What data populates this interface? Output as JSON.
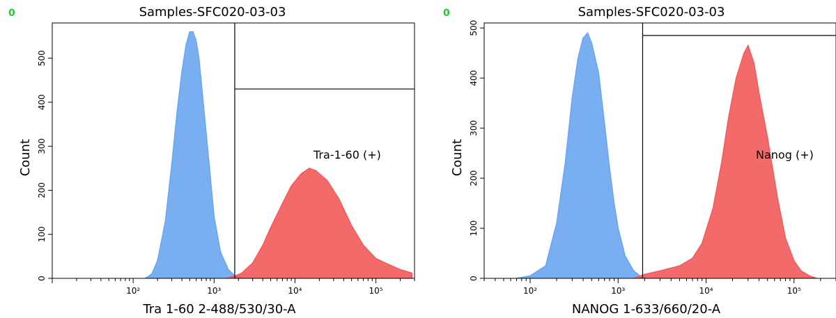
{
  "chart_data": [
    {
      "type": "histogram",
      "corner_label": "0",
      "title": "Samples-SFC020-03-03",
      "xlabel": "Tra 1-60 2-488/530/30-A",
      "ylabel": "Count",
      "x_scale": "log",
      "xlim": [
        10,
        300000
      ],
      "ylim": [
        0,
        580
      ],
      "x_ticks": [
        {
          "value": 100,
          "label": "10²"
        },
        {
          "value": 1000,
          "label": "10³"
        },
        {
          "value": 10000,
          "label": "10⁴"
        },
        {
          "value": 100000,
          "label": "10⁵"
        }
      ],
      "y_ticks": [
        {
          "value": 0,
          "label": "0"
        },
        {
          "value": 100,
          "label": "100"
        },
        {
          "value": 200,
          "label": "200"
        },
        {
          "value": 300,
          "label": "300"
        },
        {
          "value": 400,
          "label": "400"
        },
        {
          "value": 500,
          "label": "500"
        }
      ],
      "gate": {
        "label": "Tra-1-60 (+)",
        "x_min": 1800,
        "upper_line_y": 430
      },
      "series": [
        {
          "color": "#6aa6f0",
          "points": [
            [
              140,
              0
            ],
            [
              170,
              10
            ],
            [
              200,
              40
            ],
            [
              250,
              130
            ],
            [
              300,
              260
            ],
            [
              350,
              380
            ],
            [
              400,
              470
            ],
            [
              450,
              530
            ],
            [
              500,
              560
            ],
            [
              550,
              560
            ],
            [
              600,
              540
            ],
            [
              650,
              500
            ],
            [
              700,
              440
            ],
            [
              800,
              330
            ],
            [
              900,
              230
            ],
            [
              1000,
              140
            ],
            [
              1200,
              60
            ],
            [
              1500,
              20
            ],
            [
              1800,
              6
            ],
            [
              2200,
              0
            ]
          ]
        },
        {
          "color": "#f25a5a",
          "points": [
            [
              1400,
              0
            ],
            [
              1800,
              5
            ],
            [
              2200,
              12
            ],
            [
              3000,
              35
            ],
            [
              4000,
              75
            ],
            [
              5000,
              115
            ],
            [
              7000,
              170
            ],
            [
              9000,
              210
            ],
            [
              12000,
              238
            ],
            [
              15000,
              250
            ],
            [
              18000,
              245
            ],
            [
              25000,
              222
            ],
            [
              35000,
              180
            ],
            [
              50000,
              120
            ],
            [
              70000,
              75
            ],
            [
              100000,
              45
            ],
            [
              150000,
              30
            ],
            [
              200000,
              20
            ],
            [
              280000,
              12
            ]
          ]
        }
      ]
    },
    {
      "type": "histogram",
      "corner_label": "0",
      "title": "Samples-SFC020-03-03",
      "xlabel": "NANOG 1-633/660/20-A",
      "ylabel": "Count",
      "x_scale": "log",
      "xlim": [
        30,
        300000
      ],
      "ylim": [
        0,
        510
      ],
      "x_ticks": [
        {
          "value": 100,
          "label": "10²"
        },
        {
          "value": 1000,
          "label": "10³"
        },
        {
          "value": 10000,
          "label": "10⁴"
        },
        {
          "value": 100000,
          "label": "10⁵"
        }
      ],
      "y_ticks": [
        {
          "value": 0,
          "label": "0"
        },
        {
          "value": 100,
          "label": "100"
        },
        {
          "value": 200,
          "label": "200"
        },
        {
          "value": 300,
          "label": "300"
        },
        {
          "value": 400,
          "label": "400"
        },
        {
          "value": 500,
          "label": "500"
        }
      ],
      "gate": {
        "label": "Nanog (+)",
        "x_min": 1900,
        "upper_line_y": 485
      },
      "series": [
        {
          "color": "#6aa6f0",
          "points": [
            [
              70,
              0
            ],
            [
              100,
              5
            ],
            [
              150,
              25
            ],
            [
              200,
              110
            ],
            [
              250,
              230
            ],
            [
              300,
              360
            ],
            [
              350,
              440
            ],
            [
              400,
              480
            ],
            [
              450,
              490
            ],
            [
              500,
              470
            ],
            [
              600,
              410
            ],
            [
              700,
              310
            ],
            [
              800,
              220
            ],
            [
              900,
              150
            ],
            [
              1000,
              100
            ],
            [
              1200,
              45
            ],
            [
              1500,
              15
            ],
            [
              1800,
              4
            ],
            [
              2200,
              0
            ]
          ]
        },
        {
          "color": "#f25a5a",
          "points": [
            [
              1500,
              0
            ],
            [
              2000,
              8
            ],
            [
              3000,
              15
            ],
            [
              5000,
              25
            ],
            [
              7000,
              40
            ],
            [
              9000,
              70
            ],
            [
              12000,
              140
            ],
            [
              15000,
              230
            ],
            [
              18000,
              320
            ],
            [
              22000,
              400
            ],
            [
              27000,
              450
            ],
            [
              30000,
              465
            ],
            [
              35000,
              430
            ],
            [
              40000,
              370
            ],
            [
              50000,
              280
            ],
            [
              65000,
              160
            ],
            [
              80000,
              80
            ],
            [
              100000,
              35
            ],
            [
              120000,
              15
            ],
            [
              150000,
              5
            ],
            [
              180000,
              0
            ]
          ]
        }
      ]
    }
  ]
}
